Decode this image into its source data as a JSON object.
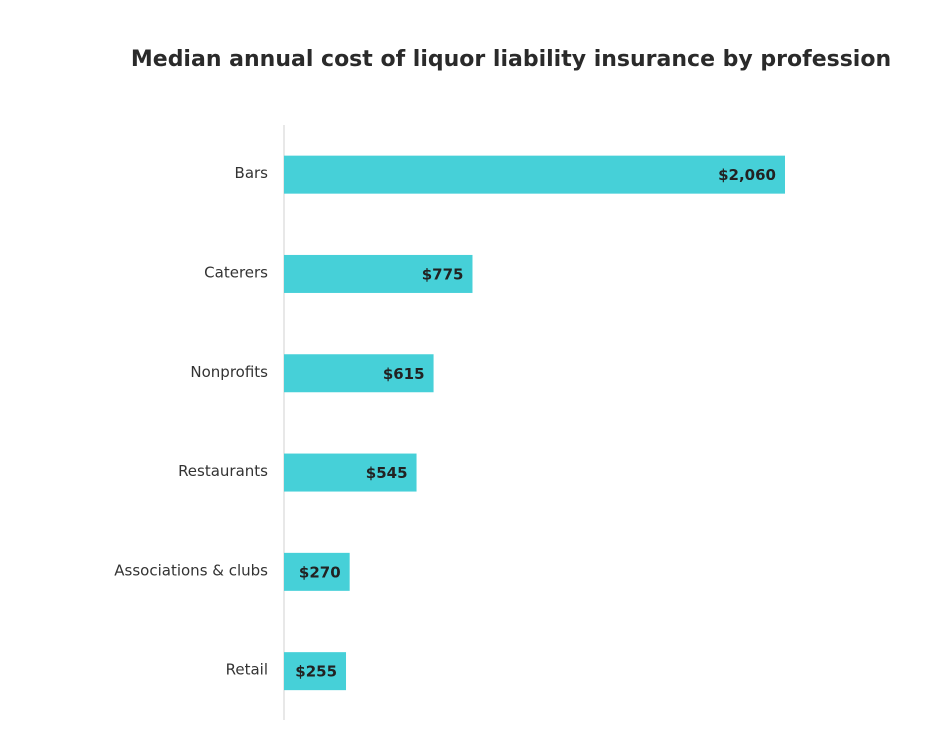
{
  "chart_data": {
    "type": "bar",
    "orientation": "horizontal",
    "title": "Median annual cost of liquor liability insurance by profession",
    "categories": [
      "Bars",
      "Caterers",
      "Nonprofits",
      "Restaurants",
      "Associations & clubs",
      "Retail"
    ],
    "values": [
      2060,
      775,
      615,
      545,
      270,
      255
    ],
    "value_labels": [
      "$2,060",
      "$775",
      "$615",
      "$545",
      "$270",
      "$255"
    ],
    "color": "#46d0d8"
  }
}
